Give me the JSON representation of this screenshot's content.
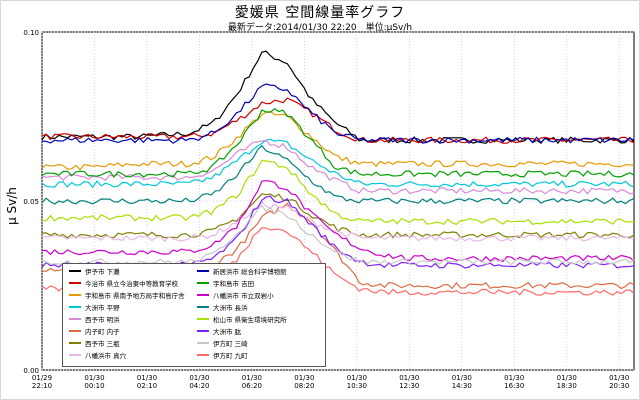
{
  "header": {
    "title": "愛媛県 空間線量率グラフ",
    "subtitle": "最新データ:2014/01/30 22:20　単位:μSv/h"
  },
  "chart_data": {
    "type": "line",
    "ylabel": "μ Sv/h",
    "ylim": [
      0,
      0.1
    ],
    "yticks": [
      "0.00",
      "0.05",
      "0.10"
    ],
    "xlim": [
      "2014/01/29 22:10",
      "2014/01/30 22:20"
    ],
    "x_ticks": [
      {
        "date": "01/29",
        "time": "22:10"
      },
      {
        "date": "01/30",
        "time": "00:10"
      },
      {
        "date": "01/30",
        "time": "02:10"
      },
      {
        "date": "01/30",
        "time": "04:20"
      },
      {
        "date": "01/30",
        "time": "06:20"
      },
      {
        "date": "01/30",
        "time": "08:20"
      },
      {
        "date": "01/30",
        "time": "10:30"
      },
      {
        "date": "01/30",
        "time": "12:30"
      },
      {
        "date": "01/30",
        "time": "14:30"
      },
      {
        "date": "01/30",
        "time": "16:30"
      },
      {
        "date": "01/30",
        "time": "18:30"
      },
      {
        "date": "01/30",
        "time": "20:30"
      }
    ],
    "time_hours": [
      0,
      2,
      4,
      6,
      7,
      8,
      9,
      10,
      11,
      12,
      13,
      14,
      15,
      16,
      18,
      20,
      22,
      24.17
    ],
    "series": [
      {
        "name": "伊予市 下灘",
        "color": "#000000",
        "values": [
          0.069,
          0.069,
          0.069,
          0.07,
          0.073,
          0.082,
          0.094,
          0.091,
          0.08,
          0.073,
          0.068,
          0.068,
          0.068,
          0.068,
          0.068,
          0.068,
          0.068,
          0.068
        ]
      },
      {
        "name": "今治市 県立今治東中等教育学校",
        "color": "#d00000",
        "values": [
          0.069,
          0.069,
          0.069,
          0.069,
          0.07,
          0.074,
          0.079,
          0.08,
          0.076,
          0.071,
          0.068,
          0.068,
          0.068,
          0.068,
          0.068,
          0.068,
          0.068,
          0.068
        ]
      },
      {
        "name": "宇和島市 県南予地方局宇和島庁舎",
        "color": "#e69a00",
        "values": [
          0.06,
          0.06,
          0.061,
          0.061,
          0.063,
          0.069,
          0.076,
          0.075,
          0.069,
          0.063,
          0.061,
          0.061,
          0.061,
          0.061,
          0.061,
          0.061,
          0.061,
          0.061
        ]
      },
      {
        "name": "大洲市 平野",
        "color": "#00c8d8",
        "values": [
          0.055,
          0.055,
          0.055,
          0.055,
          0.057,
          0.062,
          0.068,
          0.067,
          0.062,
          0.058,
          0.055,
          0.055,
          0.055,
          0.055,
          0.055,
          0.055,
          0.055,
          0.055
        ]
      },
      {
        "name": "西予市 明浜",
        "color": "#d88ad8",
        "values": [
          0.057,
          0.057,
          0.057,
          0.057,
          0.059,
          0.064,
          0.068,
          0.066,
          0.06,
          0.056,
          0.053,
          0.053,
          0.053,
          0.053,
          0.053,
          0.053,
          0.053,
          0.053
        ]
      },
      {
        "name": "内子町 内子",
        "color": "#e06a40",
        "values": [
          0.03,
          0.03,
          0.03,
          0.03,
          0.031,
          0.036,
          0.045,
          0.049,
          0.044,
          0.035,
          0.026,
          0.025,
          0.025,
          0.025,
          0.025,
          0.025,
          0.025,
          0.025
        ]
      },
      {
        "name": "西予市 三瓶",
        "color": "#808000",
        "values": [
          0.04,
          0.04,
          0.04,
          0.04,
          0.041,
          0.045,
          0.052,
          0.051,
          0.046,
          0.042,
          0.04,
          0.04,
          0.04,
          0.04,
          0.04,
          0.04,
          0.04,
          0.04
        ]
      },
      {
        "name": "八幡浜市 真穴",
        "color": "#e6b8e6",
        "values": [
          0.039,
          0.039,
          0.039,
          0.039,
          0.04,
          0.044,
          0.049,
          0.048,
          0.044,
          0.041,
          0.039,
          0.039,
          0.039,
          0.039,
          0.039,
          0.039,
          0.039,
          0.039
        ]
      },
      {
        "name": "新居浜市 総合科学博物館",
        "color": "#0000b0",
        "values": [
          0.068,
          0.068,
          0.068,
          0.068,
          0.07,
          0.076,
          0.084,
          0.083,
          0.076,
          0.07,
          0.068,
          0.068,
          0.068,
          0.068,
          0.068,
          0.068,
          0.068,
          0.068
        ]
      },
      {
        "name": "宇和島市 吉田",
        "color": "#00a000",
        "values": [
          0.058,
          0.058,
          0.058,
          0.058,
          0.06,
          0.067,
          0.077,
          0.076,
          0.068,
          0.06,
          0.058,
          0.058,
          0.058,
          0.058,
          0.058,
          0.058,
          0.058,
          0.058
        ]
      },
      {
        "name": "八幡浜市 市立双岩小",
        "color": "#cc00cc",
        "values": [
          0.035,
          0.035,
          0.035,
          0.035,
          0.037,
          0.043,
          0.056,
          0.054,
          0.046,
          0.04,
          0.036,
          0.034,
          0.033,
          0.033,
          0.033,
          0.033,
          0.033,
          0.033
        ]
      },
      {
        "name": "大洲市 長浜",
        "color": "#008080",
        "values": [
          0.05,
          0.05,
          0.05,
          0.05,
          0.052,
          0.058,
          0.066,
          0.062,
          0.056,
          0.051,
          0.05,
          0.05,
          0.05,
          0.05,
          0.05,
          0.05,
          0.05,
          0.05
        ]
      },
      {
        "name": "松山市 県衛生環境研究所",
        "color": "#a8e000",
        "values": [
          0.045,
          0.045,
          0.045,
          0.045,
          0.047,
          0.052,
          0.062,
          0.06,
          0.052,
          0.046,
          0.044,
          0.044,
          0.044,
          0.044,
          0.044,
          0.044,
          0.044,
          0.044
        ]
      },
      {
        "name": "大洲市 肱",
        "color": "#8020ff",
        "values": [
          0.031,
          0.031,
          0.031,
          0.031,
          0.033,
          0.039,
          0.051,
          0.05,
          0.043,
          0.036,
          0.032,
          0.031,
          0.031,
          0.031,
          0.031,
          0.031,
          0.031,
          0.031
        ]
      },
      {
        "name": "伊方町 三崎",
        "color": "#c8c8c8",
        "values": [
          0.032,
          0.032,
          0.032,
          0.032,
          0.034,
          0.041,
          0.048,
          0.046,
          0.04,
          0.035,
          0.032,
          0.032,
          0.032,
          0.032,
          0.032,
          0.032,
          0.032,
          0.032
        ]
      },
      {
        "name": "伊方町 九町",
        "color": "#ff6a6a",
        "values": [
          0.024,
          0.024,
          0.024,
          0.024,
          0.026,
          0.033,
          0.043,
          0.041,
          0.035,
          0.028,
          0.024,
          0.023,
          0.023,
          0.023,
          0.023,
          0.023,
          0.023,
          0.023
        ]
      }
    ]
  }
}
